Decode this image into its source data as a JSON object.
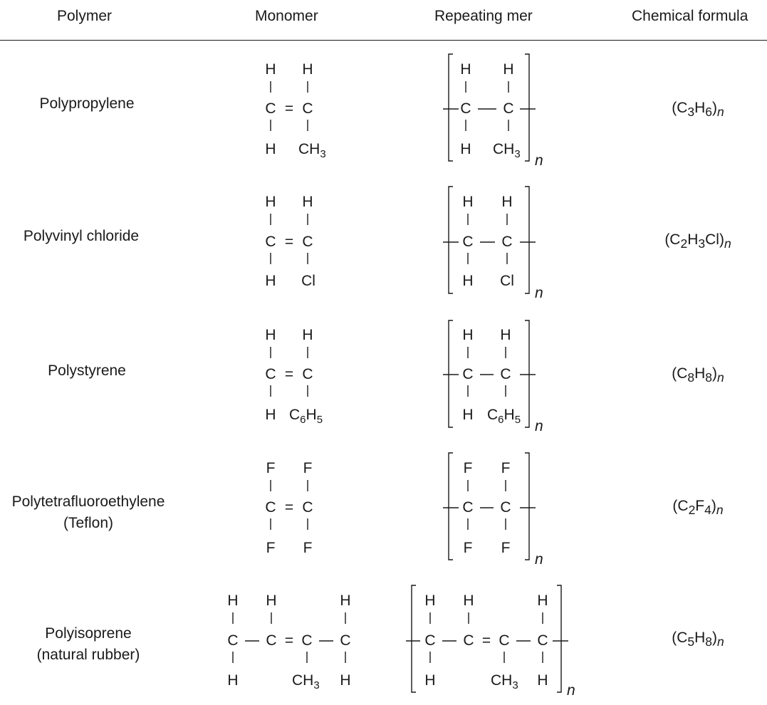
{
  "headers": {
    "polymer": "Polymer",
    "monomer": "Monomer",
    "repeating_mer": "Repeating mer",
    "chemical_formula": "Chemical formula"
  },
  "rows": [
    {
      "name": "Polypropylene",
      "subname": "",
      "substituent": "CH3",
      "formula_parts": [
        "(C",
        "3",
        "H",
        "6",
        ")"
      ]
    },
    {
      "name": "Polyvinyl chloride",
      "subname": "",
      "substituent": "Cl",
      "formula_parts": [
        "(C",
        "2",
        "H",
        "3",
        "Cl)"
      ]
    },
    {
      "name": "Polystyrene",
      "subname": "",
      "substituent": "C6H5",
      "formula_parts": [
        "(C",
        "8",
        "H",
        "8",
        ")"
      ]
    },
    {
      "name": "Polytetrafluoroethylene",
      "subname": "(Teflon)",
      "substituent": "F",
      "formula_parts": [
        "(C",
        "2",
        "F",
        "4",
        ")"
      ]
    },
    {
      "name": "Polyisoprene",
      "subname": "(natural rubber)",
      "substituent": "CH3",
      "formula_parts": [
        "(C",
        "5",
        "H",
        "8",
        ")"
      ]
    }
  ],
  "subscript_n": "n"
}
